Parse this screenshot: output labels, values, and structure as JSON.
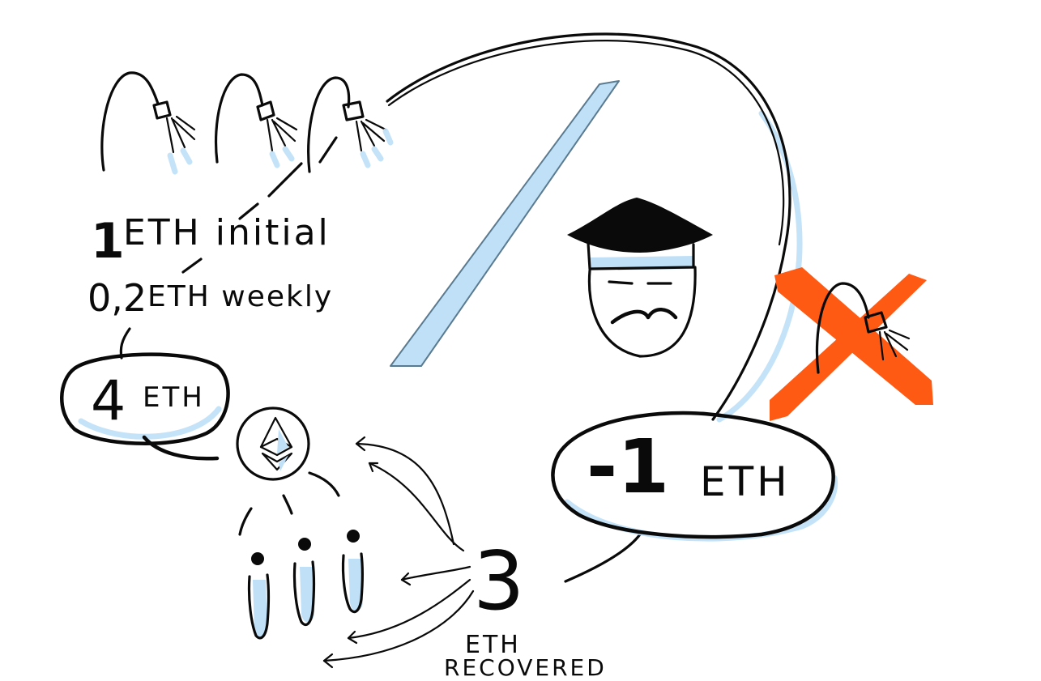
{
  "colors": {
    "ink": "#0a0a0a",
    "accent_blue": "#bfe0f7",
    "accent_orange": "#ff5a14",
    "paper": "#ffffff"
  },
  "icons": {
    "faucet": "faucet-icon",
    "ethereum": "ethereum-logo-icon",
    "person": "person-icon",
    "scammer": "mustache-face-icon",
    "cross": "cross-out-icon",
    "arrow": "arrow-icon"
  },
  "labels": {
    "initial": {
      "amount": "1",
      "text": "ETH initial"
    },
    "weekly": {
      "amount": "0,2",
      "text": "ETH weekly"
    },
    "pool": {
      "amount": "4",
      "unit": "ETH"
    },
    "loss": {
      "amount": "-1",
      "unit": "ETH"
    },
    "recovered": {
      "amount": "3",
      "line1": "ETH",
      "line2": "RECOVERED"
    }
  }
}
